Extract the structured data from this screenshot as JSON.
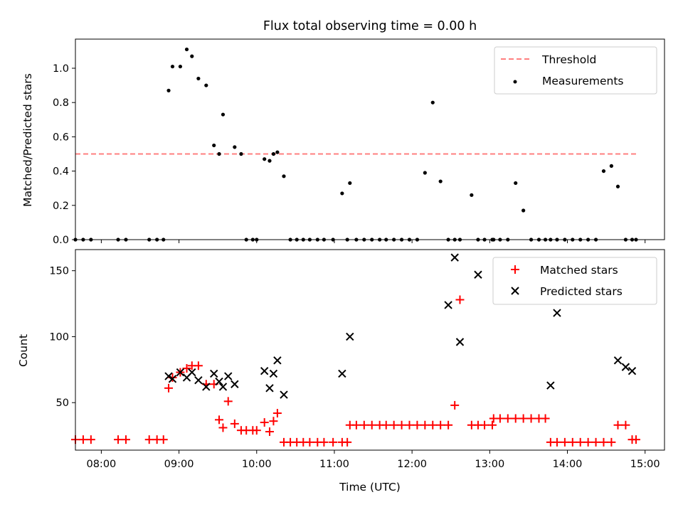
{
  "chart_data": [
    {
      "type": "scatter",
      "title": "Flux total observing time = 0.00 h",
      "xlabel": "",
      "ylabel": "Matched/Predicted stars",
      "xlim": [
        "07:40",
        "15:15"
      ],
      "ylim": [
        0,
        1.17
      ],
      "yticks": [
        "0.0",
        "0.2",
        "0.4",
        "0.6",
        "0.8",
        "1.0"
      ],
      "grid": false,
      "legend_placement": "top-right",
      "threshold": {
        "name": "Threshold",
        "y": 0.5,
        "x_start": "07:40",
        "x_end": "14:53",
        "color": "#ff7f7f"
      },
      "series": [
        {
          "name": "Measurements",
          "color": "#000000",
          "marker": "dot",
          "x": [
            "07:40",
            "07:46",
            "07:52",
            "08:13",
            "08:19",
            "08:37",
            "08:43",
            "08:48",
            "08:52",
            "08:55",
            "09:01",
            "09:06",
            "09:10",
            "09:15",
            "09:21",
            "09:27",
            "09:31",
            "09:34",
            "09:43",
            "09:48",
            "09:52",
            "09:57",
            "10:00",
            "10:06",
            "10:10",
            "10:13",
            "10:16",
            "10:21",
            "10:26",
            "10:31",
            "10:36",
            "10:41",
            "10:47",
            "10:52",
            "10:59",
            "11:06",
            "11:10",
            "11:12",
            "11:17",
            "11:23",
            "11:29",
            "11:35",
            "11:40",
            "11:46",
            "11:52",
            "11:58",
            "12:04",
            "12:10",
            "12:16",
            "12:22",
            "12:28",
            "12:33",
            "12:37",
            "12:46",
            "12:51",
            "12:56",
            "13:02",
            "13:03",
            "13:08",
            "13:14",
            "13:20",
            "13:26",
            "13:32",
            "13:38",
            "13:43",
            "13:47",
            "13:52",
            "13:58",
            "14:04",
            "14:10",
            "14:16",
            "14:22",
            "14:28",
            "14:34",
            "14:39",
            "14:45",
            "14:50",
            "14:53"
          ],
          "y": [
            0,
            0,
            0,
            0,
            0,
            0,
            0,
            0,
            0.87,
            1.01,
            1.01,
            1.11,
            1.07,
            0.94,
            0.9,
            0.55,
            0.5,
            0.73,
            0.54,
            0.5,
            0,
            0,
            0,
            0.47,
            0.46,
            0.5,
            0.51,
            0.37,
            0,
            0,
            0,
            0,
            0,
            0,
            0,
            0.27,
            0,
            0.33,
            0,
            0,
            0,
            0,
            0,
            0,
            0,
            0,
            0,
            0.39,
            0.8,
            0.34,
            0,
            0,
            0,
            0.26,
            0,
            0,
            0,
            0,
            0,
            0,
            0.33,
            0.17,
            0,
            0,
            0,
            0,
            0,
            0,
            0,
            0,
            0,
            0,
            0.4,
            0.43,
            0.31,
            0,
            0,
            0
          ]
        }
      ]
    },
    {
      "type": "scatter",
      "title": "",
      "xlabel": "Time (UTC)",
      "ylabel": "Count",
      "xlim": [
        "07:40",
        "15:15"
      ],
      "ylim": [
        14,
        166
      ],
      "yticks": [
        "50",
        "100",
        "150"
      ],
      "xticks": [
        "08:00",
        "09:00",
        "10:00",
        "11:00",
        "12:00",
        "13:00",
        "14:00",
        "15:00"
      ],
      "grid": false,
      "legend_placement": "top-right",
      "series": [
        {
          "name": "Matched stars",
          "color": "#ff0000",
          "marker": "plus",
          "x": [
            "07:40",
            "07:46",
            "07:52",
            "08:13",
            "08:19",
            "08:37",
            "08:43",
            "08:48",
            "08:52",
            "08:55",
            "09:01",
            "09:06",
            "09:10",
            "09:15",
            "09:21",
            "09:27",
            "09:31",
            "09:34",
            "09:38",
            "09:43",
            "09:48",
            "09:52",
            "09:57",
            "10:00",
            "10:06",
            "10:10",
            "10:13",
            "10:16",
            "10:21",
            "10:26",
            "10:31",
            "10:36",
            "10:41",
            "10:47",
            "10:52",
            "10:59",
            "11:06",
            "11:10",
            "11:12",
            "11:17",
            "11:23",
            "11:29",
            "11:35",
            "11:40",
            "11:46",
            "11:52",
            "11:58",
            "12:04",
            "12:10",
            "12:16",
            "12:22",
            "12:28",
            "12:33",
            "12:37",
            "12:46",
            "12:51",
            "12:56",
            "13:02",
            "13:03",
            "13:08",
            "13:14",
            "13:20",
            "13:26",
            "13:32",
            "13:38",
            "13:43",
            "13:47",
            "13:52",
            "13:58",
            "14:04",
            "14:10",
            "14:16",
            "14:22",
            "14:28",
            "14:34",
            "14:39",
            "14:45",
            "14:50",
            "14:53"
          ],
          "y": [
            22,
            22,
            22,
            22,
            22,
            22,
            22,
            22,
            61,
            69,
            73,
            76,
            78,
            78,
            64,
            64,
            37,
            31,
            51,
            34,
            29,
            29,
            29,
            29,
            35,
            28,
            36,
            42,
            20,
            20,
            20,
            20,
            20,
            20,
            20,
            20,
            20,
            20,
            33,
            33,
            33,
            33,
            33,
            33,
            33,
            33,
            33,
            33,
            33,
            33,
            33,
            33,
            48,
            128,
            33,
            33,
            33,
            33,
            38,
            38,
            38,
            38,
            38,
            38,
            38,
            38,
            20,
            20,
            20,
            20,
            20,
            20,
            20,
            20,
            20,
            33,
            33,
            22,
            22
          ]
        },
        {
          "name": "Predicted stars",
          "color": "#000000",
          "marker": "x",
          "x": [
            "08:52",
            "08:55",
            "09:01",
            "09:06",
            "09:10",
            "09:15",
            "09:21",
            "09:27",
            "09:31",
            "09:34",
            "09:38",
            "09:43",
            "10:06",
            "10:10",
            "10:13",
            "10:16",
            "10:21",
            "11:06",
            "11:12",
            "12:28",
            "12:33",
            "12:37",
            "12:51",
            "13:47",
            "13:52",
            "14:39",
            "14:45",
            "14:50"
          ],
          "y": [
            70,
            68,
            73,
            69,
            73,
            67,
            62,
            72,
            66,
            62,
            70,
            64,
            74,
            61,
            72,
            82,
            56,
            72,
            100,
            124,
            160,
            96,
            147,
            63,
            118,
            82,
            77,
            74
          ]
        }
      ]
    }
  ]
}
